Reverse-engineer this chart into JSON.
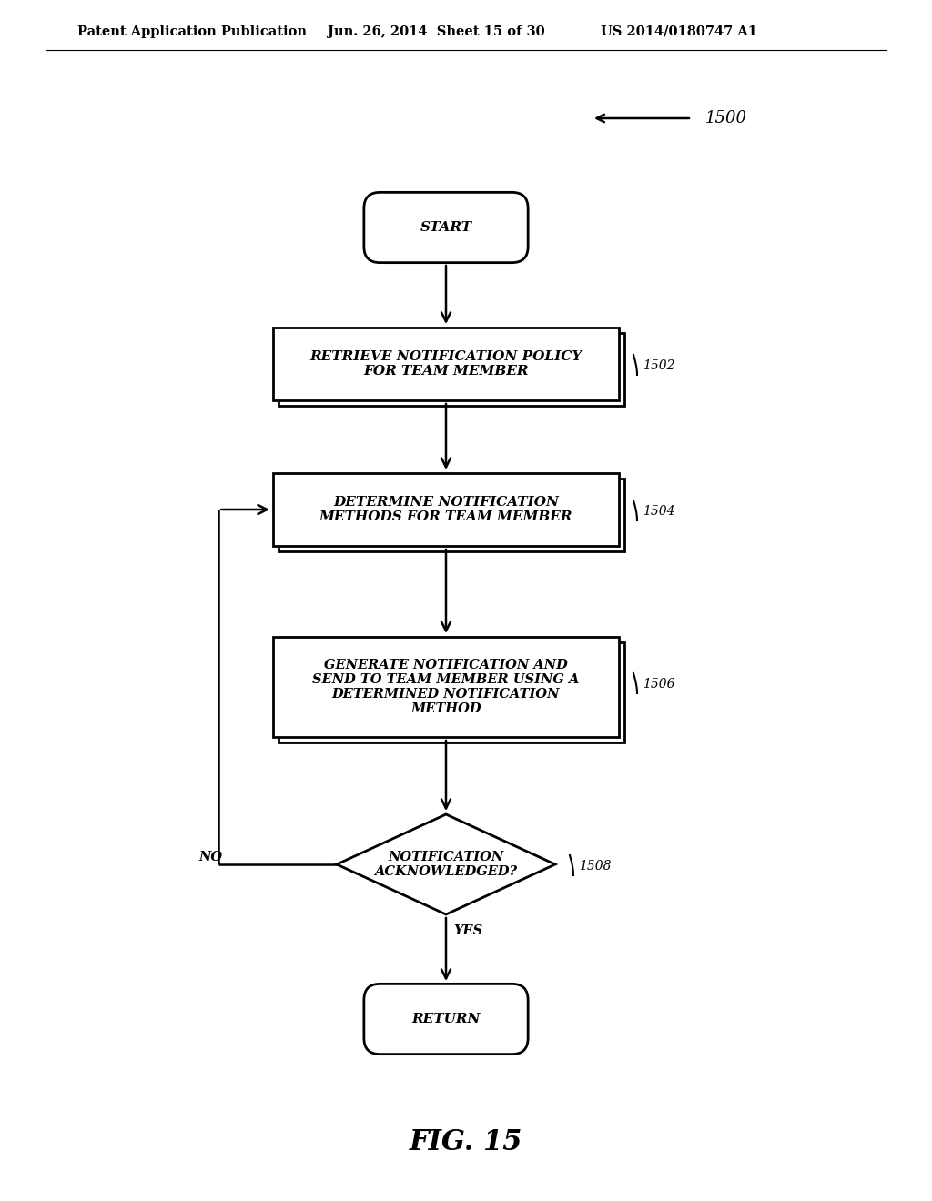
{
  "header_left": "Patent Application Publication",
  "header_mid": "Jun. 26, 2014  Sheet 15 of 30",
  "header_right": "US 2014/0180747 A1",
  "fig_label": "FIG. 15",
  "diagram_label": "1500",
  "bg_color": "#ffffff",
  "start_label": "START",
  "return_label": "RETURN",
  "box1_label": "RETRIEVE NOTIFICATION POLICY\nFOR TEAM MEMBER",
  "box1_ref": "1502",
  "box2_label": "DETERMINE NOTIFICATION\nMETHODS FOR TEAM MEMBER",
  "box2_ref": "1504",
  "box3_label": "GENERATE NOTIFICATION AND\nSEND TO TEAM MEMBER USING A\nDETERMINED NOTIFICATION\nMETHOD",
  "box3_ref": "1506",
  "diamond_label": "NOTIFICATION\nACKNOWLEDGED?",
  "diamond_ref": "1508",
  "yes_label": "YES",
  "no_label": "NO",
  "font_size_header": 10.5,
  "font_size_node": 11,
  "font_size_ref": 10,
  "font_size_fig": 22,
  "font_size_yn": 10.5
}
